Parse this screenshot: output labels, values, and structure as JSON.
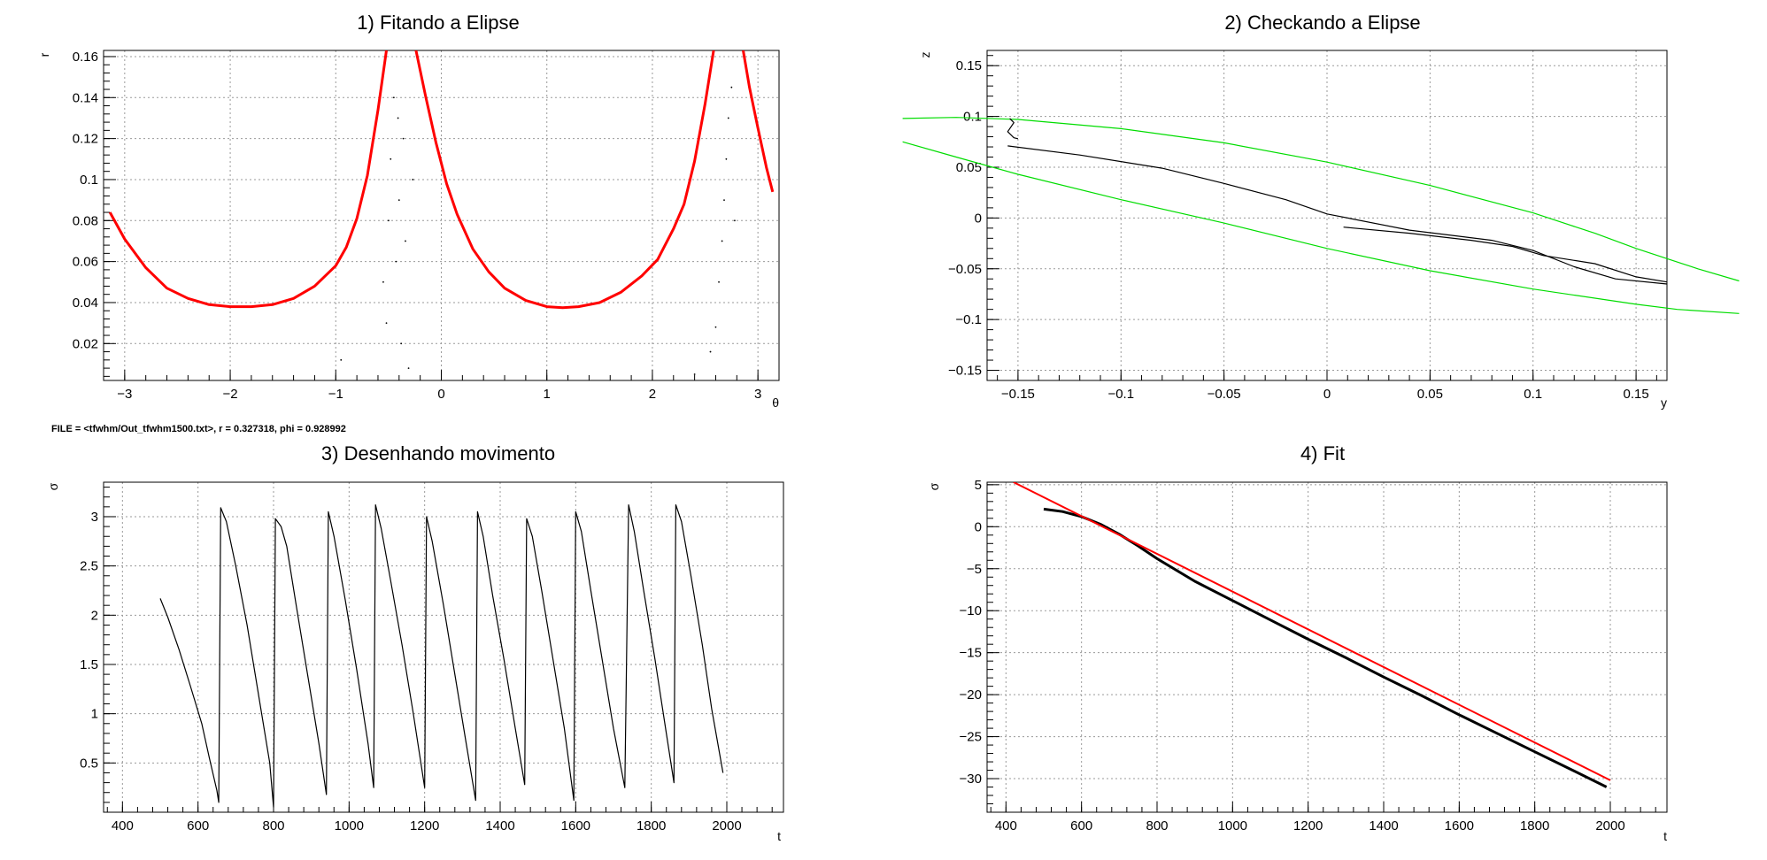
{
  "note": "FILE = <tfwhm/Out_tfwhm1500.txt>, r = 0.327318, phi = 0.928992",
  "chart_data": [
    {
      "type": "line",
      "title": "1) Fitando a Elipse",
      "xlabel": "θ",
      "ylabel": "r",
      "xlim": [
        -3.2,
        3.2
      ],
      "ylim": [
        0.002,
        0.163
      ],
      "xticks": [
        -3,
        -2,
        -1,
        0,
        1,
        2,
        3
      ],
      "xtick_labels": [
        "−3",
        "−2",
        "−1",
        "0",
        "1",
        "2",
        "3"
      ],
      "yticks": [
        0.02,
        0.04,
        0.06,
        0.08,
        0.1,
        0.12,
        0.14,
        0.16
      ],
      "ytick_labels": [
        "0.02",
        "0.04",
        "0.06",
        "0.08",
        "0.1",
        "0.12",
        "0.14",
        "0.16"
      ],
      "grid": true,
      "series": [
        {
          "color": "#ff0000",
          "segments": [
            [
              [
                -3.14,
                0.084
              ],
              [
                -3.0,
                0.071
              ],
              [
                -2.8,
                0.057
              ],
              [
                -2.6,
                0.047
              ],
              [
                -2.4,
                0.042
              ],
              [
                -2.2,
                0.039
              ],
              [
                -2.0,
                0.038
              ],
              [
                -1.8,
                0.038
              ],
              [
                -1.6,
                0.039
              ],
              [
                -1.4,
                0.042
              ],
              [
                -1.2,
                0.048
              ],
              [
                -1.0,
                0.058
              ],
              [
                -0.9,
                0.067
              ],
              [
                -0.8,
                0.081
              ],
              [
                -0.7,
                0.102
              ],
              [
                -0.6,
                0.134
              ],
              [
                -0.52,
                0.163
              ]
            ],
            [
              [
                -0.24,
                0.163
              ],
              [
                -0.15,
                0.141
              ],
              [
                -0.05,
                0.118
              ],
              [
                0.05,
                0.098
              ],
              [
                0.15,
                0.083
              ],
              [
                0.3,
                0.066
              ],
              [
                0.45,
                0.055
              ],
              [
                0.6,
                0.047
              ],
              [
                0.8,
                0.041
              ],
              [
                1.0,
                0.038
              ],
              [
                1.15,
                0.0375
              ],
              [
                1.3,
                0.038
              ],
              [
                1.5,
                0.04
              ],
              [
                1.7,
                0.045
              ],
              [
                1.9,
                0.053
              ],
              [
                2.05,
                0.061
              ],
              [
                2.2,
                0.076
              ],
              [
                2.3,
                0.088
              ],
              [
                2.4,
                0.109
              ],
              [
                2.5,
                0.137
              ],
              [
                2.58,
                0.163
              ]
            ],
            [
              [
                2.86,
                0.163
              ],
              [
                2.92,
                0.145
              ],
              [
                3.0,
                0.125
              ],
              [
                3.08,
                0.106
              ],
              [
                3.14,
                0.094
              ]
            ]
          ]
        },
        {
          "color": "#000000",
          "markers": "dots",
          "points": [
            [
              -0.55,
              0.05
            ],
            [
              -0.52,
              0.03
            ],
            [
              -0.5,
              0.08
            ],
            [
              -0.48,
              0.11
            ],
            [
              -0.45,
              0.14
            ],
            [
              -0.43,
              0.06
            ],
            [
              -0.41,
              0.13
            ],
            [
              -0.4,
              0.09
            ],
            [
              -0.38,
              0.02
            ],
            [
              -0.36,
              0.12
            ],
            [
              -0.34,
              0.07
            ],
            [
              -0.31,
              0.008
            ],
            [
              -0.27,
              0.1
            ],
            [
              -0.95,
              0.012
            ],
            [
              2.4,
              0.005
            ],
            [
              2.55,
              0.016
            ],
            [
              2.6,
              0.028
            ],
            [
              2.63,
              0.05
            ],
            [
              2.66,
              0.07
            ],
            [
              2.68,
              0.09
            ],
            [
              2.7,
              0.11
            ],
            [
              2.72,
              0.13
            ],
            [
              2.75,
              0.145
            ],
            [
              2.78,
              0.08
            ]
          ]
        }
      ]
    },
    {
      "type": "line",
      "title": "2) Checkando a Elipse",
      "xlabel": "y",
      "ylabel": "z",
      "xlim": [
        -0.165,
        0.165
      ],
      "ylim": [
        -0.16,
        0.165
      ],
      "xticks": [
        -0.15,
        -0.1,
        -0.05,
        0,
        0.05,
        0.1,
        0.15
      ],
      "xtick_labels": [
        "−0.15",
        "−0.1",
        "−0.05",
        "0",
        "0.05",
        "0.1",
        "0.15"
      ],
      "yticks": [
        -0.15,
        -0.1,
        -0.05,
        0,
        0.05,
        0.1,
        0.15
      ],
      "ytick_labels": [
        "−0.15",
        "−0.1",
        "−0.05",
        "0",
        "0.05",
        "0.1",
        "0.15"
      ],
      "grid": true,
      "series": [
        {
          "color": "#00dd00",
          "segments": [
            [
              [
                -0.206,
                0.098
              ],
              [
                -0.18,
                0.099
              ],
              [
                -0.15,
                0.097
              ],
              [
                -0.1,
                0.088
              ],
              [
                -0.05,
                0.074
              ],
              [
                0.0,
                0.055
              ],
              [
                0.05,
                0.032
              ],
              [
                0.1,
                0.005
              ],
              [
                0.13,
                -0.015
              ],
              [
                0.15,
                -0.03
              ],
              [
                0.165,
                -0.04
              ],
              [
                0.18,
                -0.05
              ],
              [
                0.2,
                -0.062
              ]
            ],
            [
              [
                -0.206,
                0.075
              ],
              [
                -0.18,
                0.06
              ],
              [
                -0.15,
                0.043
              ],
              [
                -0.1,
                0.018
              ],
              [
                -0.05,
                -0.005
              ],
              [
                0.0,
                -0.03
              ],
              [
                0.05,
                -0.052
              ],
              [
                0.1,
                -0.07
              ],
              [
                0.15,
                -0.085
              ],
              [
                0.17,
                -0.09
              ],
              [
                0.2,
                -0.094
              ]
            ]
          ]
        },
        {
          "color": "#000000",
          "segments": [
            [
              [
                -0.154,
                0.098
              ],
              [
                -0.152,
                0.094
              ],
              [
                -0.155,
                0.085
              ],
              [
                -0.152,
                0.079
              ],
              [
                -0.15,
                0.078
              ]
            ],
            [
              [
                -0.155,
                0.071
              ],
              [
                -0.12,
                0.062
              ],
              [
                -0.08,
                0.049
              ],
              [
                -0.05,
                0.034
              ],
              [
                -0.02,
                0.018
              ],
              [
                0.0,
                0.004
              ],
              [
                0.04,
                -0.012
              ],
              [
                0.08,
                -0.022
              ],
              [
                0.1,
                -0.032
              ],
              [
                0.12,
                -0.048
              ],
              [
                0.14,
                -0.06
              ],
              [
                0.165,
                -0.065
              ]
            ],
            [
              [
                0.008,
                -0.009
              ],
              [
                0.04,
                -0.015
              ],
              [
                0.07,
                -0.022
              ],
              [
                0.09,
                -0.028
              ],
              [
                0.105,
                -0.037
              ],
              [
                0.13,
                -0.045
              ],
              [
                0.15,
                -0.058
              ],
              [
                0.165,
                -0.063
              ]
            ]
          ]
        }
      ]
    },
    {
      "type": "line",
      "title": "3) Desenhando movimento",
      "xlabel": "t",
      "ylabel": "σ",
      "xlim": [
        350,
        2150
      ],
      "ylim": [
        0,
        3.35
      ],
      "xticks": [
        400,
        600,
        800,
        1000,
        1200,
        1400,
        1600,
        1800,
        2000
      ],
      "xtick_labels": [
        "400",
        "600",
        "800",
        "1000",
        "1200",
        "1400",
        "1600",
        "1800",
        "2000"
      ],
      "yticks": [
        0.5,
        1,
        1.5,
        2,
        2.5,
        3
      ],
      "ytick_labels": [
        "0.5",
        "1",
        "1.5",
        "2",
        "2.5",
        "3"
      ],
      "grid": true,
      "series": [
        {
          "color": "#000000",
          "segments": [
            [
              [
                500,
                2.17
              ],
              [
                520,
                1.98
              ],
              [
                550,
                1.65
              ],
              [
                580,
                1.28
              ],
              [
                610,
                0.9
              ],
              [
                630,
                0.55
              ],
              [
                650,
                0.22
              ],
              [
                655,
                0.1
              ],
              [
                660,
                3.09
              ],
              [
                675,
                2.95
              ],
              [
                700,
                2.5
              ],
              [
                730,
                1.9
              ],
              [
                760,
                1.2
              ],
              [
                790,
                0.5
              ],
              [
                800,
                0.05
              ],
              [
                805,
                2.98
              ],
              [
                820,
                2.9
              ],
              [
                835,
                2.7
              ],
              [
                860,
                2.1
              ],
              [
                890,
                1.4
              ],
              [
                920,
                0.7
              ],
              [
                940,
                0.18
              ],
              [
                945,
                3.05
              ],
              [
                960,
                2.8
              ],
              [
                990,
                2.15
              ],
              [
                1020,
                1.45
              ],
              [
                1050,
                0.7
              ],
              [
                1065,
                0.25
              ],
              [
                1070,
                3.12
              ],
              [
                1085,
                2.88
              ],
              [
                1110,
                2.35
              ],
              [
                1140,
                1.7
              ],
              [
                1170,
                1.0
              ],
              [
                1200,
                0.25
              ],
              [
                1205,
                3.0
              ],
              [
                1220,
                2.75
              ],
              [
                1250,
                2.1
              ],
              [
                1280,
                1.4
              ],
              [
                1310,
                0.7
              ],
              [
                1335,
                0.12
              ],
              [
                1340,
                3.05
              ],
              [
                1355,
                2.8
              ],
              [
                1380,
                2.2
              ],
              [
                1410,
                1.55
              ],
              [
                1440,
                0.85
              ],
              [
                1465,
                0.28
              ],
              [
                1470,
                2.98
              ],
              [
                1485,
                2.8
              ],
              [
                1510,
                2.25
              ],
              [
                1540,
                1.55
              ],
              [
                1570,
                0.85
              ],
              [
                1595,
                0.12
              ],
              [
                1600,
                3.05
              ],
              [
                1615,
                2.85
              ],
              [
                1640,
                2.25
              ],
              [
                1670,
                1.55
              ],
              [
                1700,
                0.85
              ],
              [
                1730,
                0.25
              ],
              [
                1740,
                3.12
              ],
              [
                1755,
                2.85
              ],
              [
                1780,
                2.25
              ],
              [
                1810,
                1.55
              ],
              [
                1840,
                0.8
              ],
              [
                1860,
                0.3
              ],
              [
                1865,
                3.12
              ],
              [
                1880,
                2.95
              ],
              [
                1905,
                2.4
              ],
              [
                1935,
                1.7
              ],
              [
                1960,
                1.05
              ],
              [
                1990,
                0.4
              ]
            ]
          ]
        }
      ]
    },
    {
      "type": "line",
      "title": "4) Fit",
      "xlabel": "t",
      "ylabel": "σ",
      "xlim": [
        350,
        2150
      ],
      "ylim": [
        -34,
        5.3
      ],
      "xticks": [
        400,
        600,
        800,
        1000,
        1200,
        1400,
        1600,
        1800,
        2000
      ],
      "xtick_labels": [
        "400",
        "600",
        "800",
        "1000",
        "1200",
        "1400",
        "1600",
        "1800",
        "2000"
      ],
      "yticks": [
        -30,
        -25,
        -20,
        -15,
        -10,
        -5,
        0,
        5
      ],
      "ytick_labels": [
        "−30",
        "−25",
        "−20",
        "−15",
        "−10",
        "−5",
        "0",
        "5"
      ],
      "grid": true,
      "series": [
        {
          "color": "#000000",
          "width": 3,
          "segments": [
            [
              [
                500,
                2.1
              ],
              [
                550,
                1.8
              ],
              [
                600,
                1.2
              ],
              [
                650,
                0.3
              ],
              [
                700,
                -0.9
              ],
              [
                750,
                -2.3
              ],
              [
                800,
                -3.8
              ],
              [
                900,
                -6.5
              ],
              [
                1000,
                -8.8
              ],
              [
                1100,
                -11.1
              ],
              [
                1200,
                -13.4
              ],
              [
                1300,
                -15.6
              ],
              [
                1400,
                -17.9
              ],
              [
                1500,
                -20.1
              ],
              [
                1600,
                -22.4
              ],
              [
                1700,
                -24.6
              ],
              [
                1800,
                -26.8
              ],
              [
                1900,
                -29.0
              ],
              [
                1990,
                -31.0
              ]
            ]
          ]
        },
        {
          "color": "#ff0000",
          "width": 2,
          "segments": [
            [
              [
                420,
                5.3
              ],
              [
                2000,
                -30.2
              ]
            ]
          ]
        }
      ]
    }
  ]
}
